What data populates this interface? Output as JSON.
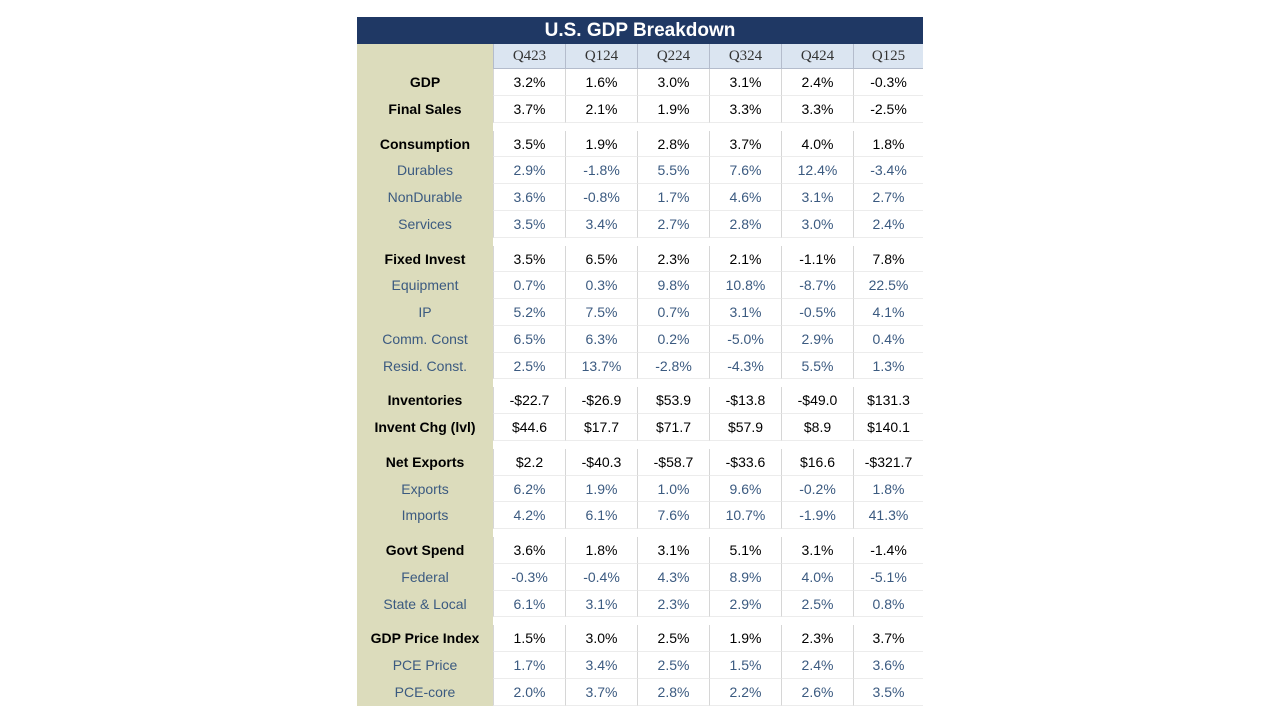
{
  "chart_data": {
    "type": "table",
    "title": "U.S. GDP Breakdown",
    "columns": [
      "Q423",
      "Q124",
      "Q224",
      "Q324",
      "Q424",
      "Q125"
    ],
    "groups": [
      {
        "rows": [
          {
            "label": "GDP",
            "major": true,
            "values": [
              "3.2%",
              "1.6%",
              "3.0%",
              "3.1%",
              "2.4%",
              "-0.3%"
            ]
          },
          {
            "label": "Final Sales",
            "major": true,
            "values": [
              "3.7%",
              "2.1%",
              "1.9%",
              "3.3%",
              "3.3%",
              "-2.5%"
            ]
          }
        ]
      },
      {
        "rows": [
          {
            "label": "Consumption",
            "major": true,
            "values": [
              "3.5%",
              "1.9%",
              "2.8%",
              "3.7%",
              "4.0%",
              "1.8%"
            ]
          },
          {
            "label": "Durables",
            "major": false,
            "values": [
              "2.9%",
              "-1.8%",
              "5.5%",
              "7.6%",
              "12.4%",
              "-3.4%"
            ]
          },
          {
            "label": "NonDurable",
            "major": false,
            "values": [
              "3.6%",
              "-0.8%",
              "1.7%",
              "4.6%",
              "3.1%",
              "2.7%"
            ]
          },
          {
            "label": "Services",
            "major": false,
            "values": [
              "3.5%",
              "3.4%",
              "2.7%",
              "2.8%",
              "3.0%",
              "2.4%"
            ]
          }
        ]
      },
      {
        "rows": [
          {
            "label": "Fixed Invest",
            "major": true,
            "values": [
              "3.5%",
              "6.5%",
              "2.3%",
              "2.1%",
              "-1.1%",
              "7.8%"
            ]
          },
          {
            "label": "Equipment",
            "major": false,
            "values": [
              "0.7%",
              "0.3%",
              "9.8%",
              "10.8%",
              "-8.7%",
              "22.5%"
            ]
          },
          {
            "label": "IP",
            "major": false,
            "values": [
              "5.2%",
              "7.5%",
              "0.7%",
              "3.1%",
              "-0.5%",
              "4.1%"
            ]
          },
          {
            "label": "Comm. Const",
            "major": false,
            "values": [
              "6.5%",
              "6.3%",
              "0.2%",
              "-5.0%",
              "2.9%",
              "0.4%"
            ]
          },
          {
            "label": "Resid. Const.",
            "major": false,
            "values": [
              "2.5%",
              "13.7%",
              "-2.8%",
              "-4.3%",
              "5.5%",
              "1.3%"
            ]
          }
        ]
      },
      {
        "rows": [
          {
            "label": "Inventories",
            "major": true,
            "values": [
              "-$22.7",
              "-$26.9",
              "$53.9",
              "-$13.8",
              "-$49.0",
              "$131.3"
            ]
          },
          {
            "label": "Invent Chg (lvl)",
            "major": true,
            "values": [
              "$44.6",
              "$17.7",
              "$71.7",
              "$57.9",
              "$8.9",
              "$140.1"
            ]
          }
        ]
      },
      {
        "rows": [
          {
            "label": "Net Exports",
            "major": true,
            "values": [
              "$2.2",
              "-$40.3",
              "-$58.7",
              "-$33.6",
              "$16.6",
              "-$321.7"
            ]
          },
          {
            "label": "Exports",
            "major": false,
            "values": [
              "6.2%",
              "1.9%",
              "1.0%",
              "9.6%",
              "-0.2%",
              "1.8%"
            ]
          },
          {
            "label": "Imports",
            "major": false,
            "values": [
              "4.2%",
              "6.1%",
              "7.6%",
              "10.7%",
              "-1.9%",
              "41.3%"
            ]
          }
        ]
      },
      {
        "rows": [
          {
            "label": "Govt Spend",
            "major": true,
            "values": [
              "3.6%",
              "1.8%",
              "3.1%",
              "5.1%",
              "3.1%",
              "-1.4%"
            ]
          },
          {
            "label": "Federal",
            "major": false,
            "values": [
              "-0.3%",
              "-0.4%",
              "4.3%",
              "8.9%",
              "4.0%",
              "-5.1%"
            ]
          },
          {
            "label": "State & Local",
            "major": false,
            "values": [
              "6.1%",
              "3.1%",
              "2.3%",
              "2.9%",
              "2.5%",
              "0.8%"
            ]
          }
        ]
      },
      {
        "rows": [
          {
            "label": "GDP Price Index",
            "major": true,
            "values": [
              "1.5%",
              "3.0%",
              "2.5%",
              "1.9%",
              "2.3%",
              "3.7%"
            ]
          },
          {
            "label": "PCE Price",
            "major": false,
            "values": [
              "1.7%",
              "3.4%",
              "2.5%",
              "1.5%",
              "2.4%",
              "3.6%"
            ]
          },
          {
            "label": "PCE-core",
            "major": false,
            "values": [
              "2.0%",
              "3.7%",
              "2.8%",
              "2.2%",
              "2.6%",
              "3.5%"
            ]
          }
        ]
      }
    ]
  }
}
